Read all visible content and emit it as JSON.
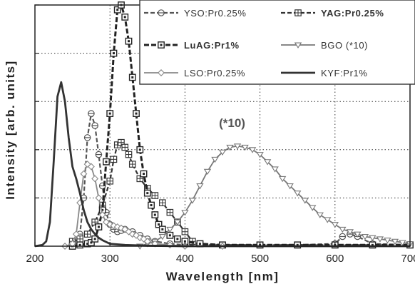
{
  "chart_data": {
    "type": "line",
    "title": "",
    "xlabel": "Wavelength [nm]",
    "ylabel": "Intensity [arb. units]",
    "xlim": [
      200,
      700
    ],
    "ylim": [
      0,
      1.0
    ],
    "x_ticks": [
      200,
      300,
      400,
      500,
      600,
      700
    ],
    "y_ticks": [
      0,
      0.2,
      0.4,
      0.6,
      0.8,
      1.0
    ],
    "grid": "dotted",
    "legend_position": "top-right",
    "annotations": [
      {
        "text": "(*10)",
        "x": 480,
        "y": 0.47
      }
    ],
    "series": [
      {
        "name": "YSO:Pr0.25%",
        "style": "dash",
        "marker": "circle-line",
        "color": "#555555",
        "x": [
          250,
          255,
          260,
          265,
          270,
          275,
          280,
          285,
          290,
          295,
          300,
          305,
          310,
          315,
          320,
          330,
          340,
          350,
          360,
          380,
          400,
          450,
          500,
          550,
          600,
          610,
          620,
          630,
          650,
          700
        ],
        "y": [
          0.005,
          0.01,
          0.05,
          0.2,
          0.45,
          0.55,
          0.5,
          0.38,
          0.25,
          0.14,
          0.09,
          0.07,
          0.06,
          0.065,
          0.07,
          0.06,
          0.045,
          0.03,
          0.02,
          0.01,
          0.005,
          0.005,
          0.005,
          0.005,
          0.01,
          0.04,
          0.05,
          0.04,
          0.01,
          0.005
        ]
      },
      {
        "name": "YAG:Pr0.25%",
        "style": "dash",
        "marker": "square-cross",
        "color": "#333333",
        "x": [
          250,
          260,
          270,
          280,
          290,
          300,
          305,
          310,
          315,
          320,
          325,
          330,
          340,
          350,
          360,
          370,
          380,
          390,
          400,
          410,
          420,
          450,
          500,
          550,
          600,
          650,
          700
        ],
        "y": [
          0.02,
          0.03,
          0.05,
          0.1,
          0.17,
          0.27,
          0.36,
          0.42,
          0.43,
          0.41,
          0.38,
          0.34,
          0.28,
          0.24,
          0.21,
          0.18,
          0.14,
          0.1,
          0.06,
          0.02,
          0.01,
          0.005,
          0.005,
          0.005,
          0.005,
          0.005,
          0.005
        ]
      },
      {
        "name": "LuAG:Pr1%",
        "style": "dash-bold",
        "marker": "square-dot",
        "color": "#222222",
        "x": [
          250,
          260,
          270,
          275,
          280,
          285,
          290,
          295,
          300,
          305,
          310,
          315,
          320,
          325,
          330,
          335,
          340,
          345,
          350,
          355,
          360,
          365,
          370,
          380,
          390,
          400,
          420,
          450,
          500,
          550,
          600,
          650,
          700
        ],
        "y": [
          0.0,
          0.005,
          0.01,
          0.015,
          0.03,
          0.08,
          0.15,
          0.35,
          0.55,
          0.8,
          0.98,
          1.0,
          0.95,
          0.85,
          0.7,
          0.55,
          0.4,
          0.3,
          0.22,
          0.17,
          0.13,
          0.09,
          0.07,
          0.045,
          0.03,
          0.02,
          0.01,
          0.005,
          0.005,
          0.005,
          0.005,
          0.005,
          0.005
        ]
      },
      {
        "name": "BGO (*10)",
        "style": "solid",
        "marker": "triangle-down",
        "color": "#777777",
        "x": [
          340,
          350,
          360,
          370,
          380,
          390,
          400,
          410,
          420,
          430,
          440,
          450,
          460,
          470,
          480,
          490,
          500,
          510,
          520,
          530,
          540,
          550,
          560,
          570,
          580,
          590,
          600,
          610,
          620,
          630,
          640,
          650,
          660,
          670,
          680,
          690,
          700
        ],
        "y": [
          0.0,
          0.01,
          0.02,
          0.04,
          0.07,
          0.1,
          0.14,
          0.19,
          0.25,
          0.31,
          0.36,
          0.39,
          0.41,
          0.415,
          0.41,
          0.4,
          0.38,
          0.35,
          0.32,
          0.28,
          0.25,
          0.22,
          0.19,
          0.16,
          0.13,
          0.11,
          0.09,
          0.07,
          0.06,
          0.05,
          0.04,
          0.035,
          0.03,
          0.025,
          0.02,
          0.015,
          0.01
        ]
      },
      {
        "name": "LSO:Pr0.25%",
        "style": "solid",
        "marker": "diamond",
        "color": "#888888",
        "x": [
          240,
          250,
          255,
          260,
          265,
          270,
          275,
          280,
          285,
          290,
          295,
          300,
          305,
          310,
          315,
          320,
          325,
          330,
          335,
          340,
          345,
          350,
          360,
          380,
          400,
          450
        ],
        "y": [
          0.0,
          0.01,
          0.05,
          0.18,
          0.3,
          0.34,
          0.33,
          0.28,
          0.2,
          0.13,
          0.1,
          0.09,
          0.085,
          0.08,
          0.075,
          0.07,
          0.06,
          0.05,
          0.045,
          0.035,
          0.03,
          0.02,
          0.01,
          0.005,
          0.0,
          0.0
        ]
      },
      {
        "name": "KYF:Pr1%",
        "style": "solid-bold",
        "marker": "none",
        "color": "#333333",
        "x": [
          200,
          210,
          215,
          220,
          225,
          230,
          235,
          240,
          245,
          250,
          255,
          260,
          265,
          270,
          275,
          280,
          285,
          290,
          300,
          320,
          350,
          400,
          700
        ],
        "y": [
          0.0,
          0.005,
          0.02,
          0.1,
          0.35,
          0.62,
          0.68,
          0.6,
          0.45,
          0.33,
          0.28,
          0.22,
          0.15,
          0.1,
          0.07,
          0.05,
          0.035,
          0.025,
          0.01,
          0.005,
          0.002,
          0.0,
          0.0
        ]
      }
    ]
  }
}
